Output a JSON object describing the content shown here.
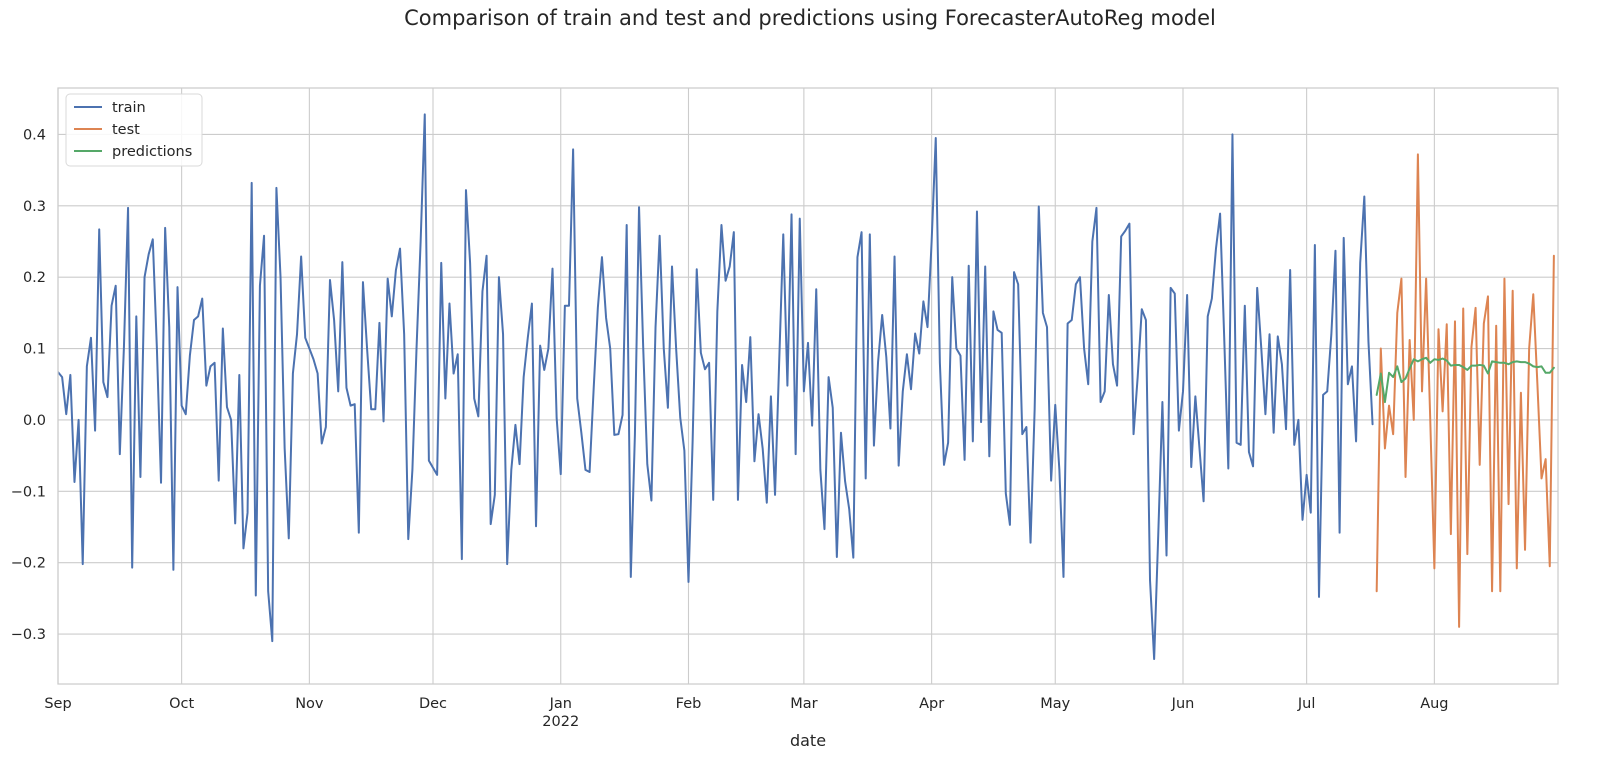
{
  "chart_data": {
    "type": "line",
    "title": "Comparison of train and test and predictions using ForecasterAutoReg model",
    "xlabel": "date",
    "ylabel": "",
    "x_range": [
      "2021-09-01",
      "2022-08-31"
    ],
    "ylim": [
      -0.37,
      0.465
    ],
    "y_ticks": [
      -0.3,
      -0.2,
      -0.1,
      0.0,
      0.1,
      0.2,
      0.3,
      0.4
    ],
    "y_tick_labels": [
      "−0.3",
      "−0.2",
      "−0.1",
      "0.0",
      "0.1",
      "0.2",
      "0.3",
      "0.4"
    ],
    "x_ticks": [
      {
        "date": "2021-09-01",
        "label": "Sep"
      },
      {
        "date": "2021-10-01",
        "label": "Oct"
      },
      {
        "date": "2021-11-01",
        "label": "Nov"
      },
      {
        "date": "2021-12-01",
        "label": "Dec"
      },
      {
        "date": "2022-01-01",
        "label": "Jan",
        "sublabel": "2022"
      },
      {
        "date": "2022-02-01",
        "label": "Feb"
      },
      {
        "date": "2022-03-01",
        "label": "Mar"
      },
      {
        "date": "2022-04-01",
        "label": "Apr"
      },
      {
        "date": "2022-05-01",
        "label": "May"
      },
      {
        "date": "2022-06-01",
        "label": "Jun"
      },
      {
        "date": "2022-07-01",
        "label": "Jul"
      },
      {
        "date": "2022-08-01",
        "label": "Aug"
      }
    ],
    "grid": true,
    "legend_position": "top-left",
    "series": [
      {
        "name": "train",
        "color": "#4c72b0",
        "start_date": "2021-09-01",
        "values": [
          0.067,
          0.06,
          0.008,
          0.063,
          -0.087,
          0.0,
          -0.202,
          0.075,
          0.115,
          -0.015,
          0.267,
          0.053,
          0.032,
          0.16,
          0.188,
          -0.048,
          0.102,
          0.297,
          -0.207,
          0.145,
          -0.08,
          0.2,
          0.232,
          0.253,
          0.1,
          -0.088,
          0.269,
          0.13,
          -0.21,
          0.186,
          0.02,
          0.008,
          0.09,
          0.14,
          0.145,
          0.17,
          0.048,
          0.075,
          0.08,
          -0.085,
          0.128,
          0.018,
          0.0,
          -0.145,
          0.063,
          -0.18,
          -0.13,
          0.332,
          -0.246,
          0.188,
          0.258,
          -0.24,
          -0.31,
          0.325,
          0.2,
          -0.04,
          -0.166,
          0.065,
          0.12,
          0.229,
          0.115,
          0.1,
          0.085,
          0.065,
          -0.033,
          -0.01,
          0.196,
          0.14,
          0.04,
          0.221,
          0.045,
          0.02,
          0.022,
          -0.158,
          0.193,
          0.1,
          0.015,
          0.015,
          0.136,
          -0.002,
          0.198,
          0.145,
          0.21,
          0.24,
          0.12,
          -0.167,
          -0.07,
          0.1,
          0.25,
          0.428,
          -0.057,
          -0.067,
          -0.077,
          0.22,
          0.03,
          0.163,
          0.065,
          0.092,
          -0.195,
          0.322,
          0.22,
          0.03,
          0.005,
          0.18,
          0.23,
          -0.146,
          -0.105,
          0.2,
          0.12,
          -0.202,
          -0.07,
          -0.007,
          -0.062,
          0.06,
          0.115,
          0.163,
          -0.149,
          0.104,
          0.07,
          0.1,
          0.212,
          0.003,
          -0.076,
          0.16,
          0.16,
          0.379,
          0.03,
          -0.018,
          -0.07,
          -0.073,
          0.045,
          0.157,
          0.228,
          0.143,
          0.1,
          -0.021,
          -0.02,
          0.007,
          0.273,
          -0.22,
          -0.02,
          0.298,
          0.103,
          -0.062,
          -0.113,
          0.13,
          0.258,
          0.1,
          0.017,
          0.215,
          0.1,
          0.003,
          -0.043,
          -0.227,
          -0.03,
          0.211,
          0.094,
          0.071,
          0.08,
          -0.112,
          0.152,
          0.273,
          0.195,
          0.215,
          0.263,
          -0.112,
          0.077,
          0.025,
          0.116,
          -0.058,
          0.008,
          -0.04,
          -0.116,
          0.033,
          -0.105,
          0.08,
          0.26,
          0.048,
          0.288,
          -0.048,
          0.282,
          0.04,
          0.108,
          -0.008,
          0.183,
          -0.07,
          -0.153,
          0.06,
          0.017,
          -0.192,
          -0.018,
          -0.086,
          -0.125,
          -0.193,
          0.228,
          0.263,
          -0.082,
          0.26,
          -0.036,
          0.081,
          0.147,
          0.088,
          -0.012,
          0.229,
          -0.064,
          0.04,
          0.092,
          0.043,
          0.121,
          0.093,
          0.166,
          0.13,
          0.25,
          0.395,
          0.08,
          -0.063,
          -0.032,
          0.2,
          0.1,
          0.09,
          -0.056,
          0.216,
          -0.03,
          0.292,
          -0.003,
          0.215,
          -0.051,
          0.152,
          0.126,
          0.122,
          -0.103,
          -0.147,
          0.207,
          0.19,
          -0.02,
          -0.01,
          -0.172,
          0.015,
          0.299,
          0.15,
          0.13,
          -0.085,
          0.021,
          -0.07,
          -0.22,
          0.135,
          0.14,
          0.19,
          0.2,
          0.1,
          0.05,
          0.25,
          0.297,
          0.025,
          0.04,
          0.175,
          0.078,
          0.048,
          0.257,
          0.265,
          0.275,
          -0.02,
          0.06,
          0.155,
          0.14,
          -0.225,
          -0.335,
          -0.16,
          0.025,
          -0.19,
          0.185,
          0.177,
          -0.015,
          0.04,
          0.175,
          -0.066,
          0.033,
          -0.04,
          -0.114,
          0.145,
          0.17,
          0.24,
          0.289,
          0.115,
          -0.068,
          0.4,
          -0.032,
          -0.035,
          0.16,
          -0.045,
          -0.065,
          0.185,
          0.1,
          0.008,
          0.12,
          -0.018,
          0.117,
          0.078,
          -0.013,
          0.21,
          -0.035,
          0.0,
          -0.14,
          -0.077,
          -0.13,
          0.245,
          -0.248,
          0.035,
          0.04,
          0.12,
          0.237,
          -0.158,
          0.255,
          0.05,
          0.075,
          -0.03,
          0.22,
          0.313,
          0.11,
          -0.006
        ]
      },
      {
        "name": "test",
        "color": "#dd8452",
        "start_date": "2022-07-18",
        "values": [
          -0.24,
          0.1,
          -0.04,
          0.02,
          -0.02,
          0.15,
          0.198,
          -0.08,
          0.112,
          0.0,
          0.372,
          0.04,
          0.198,
          0.0,
          -0.208,
          0.127,
          0.012,
          0.134,
          -0.16,
          0.138,
          -0.29,
          0.156,
          -0.188,
          0.102,
          0.157,
          -0.063,
          0.135,
          0.173,
          -0.24,
          0.132,
          -0.24,
          0.198,
          -0.118,
          0.181,
          -0.208,
          0.038,
          -0.182,
          0.1,
          0.176,
          0.05,
          -0.082,
          -0.055,
          -0.205,
          0.23
        ]
      },
      {
        "name": "predictions",
        "color": "#55a868",
        "start_date": "2022-07-18",
        "values": [
          0.035,
          0.065,
          0.025,
          0.066,
          0.06,
          0.075,
          0.053,
          0.058,
          0.072,
          0.085,
          0.082,
          0.085,
          0.087,
          0.08,
          0.085,
          0.084,
          0.086,
          0.083,
          0.076,
          0.077,
          0.077,
          0.074,
          0.07,
          0.076,
          0.076,
          0.077,
          0.076,
          0.065,
          0.082,
          0.081,
          0.08,
          0.08,
          0.078,
          0.081,
          0.082,
          0.081,
          0.081,
          0.079,
          0.075,
          0.074,
          0.075,
          0.066,
          0.066,
          0.073
        ]
      }
    ]
  }
}
